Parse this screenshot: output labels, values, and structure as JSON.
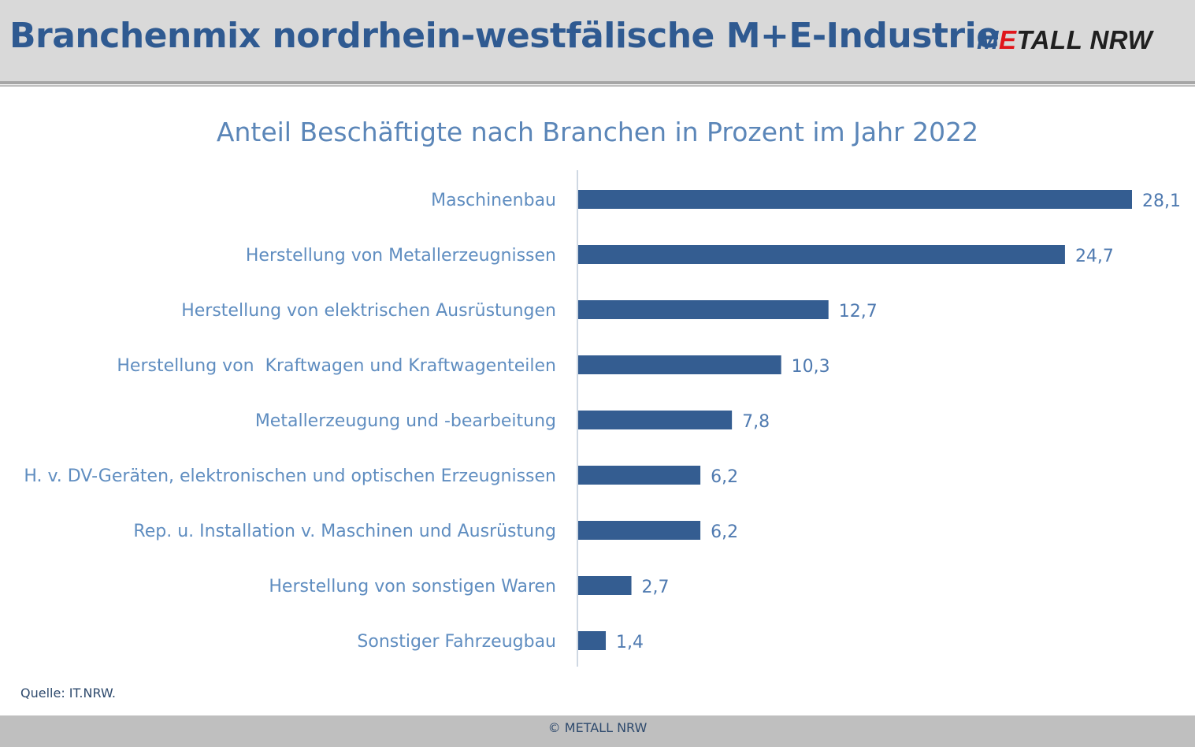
{
  "header": {
    "title": "Branchenmix nordrhein-westfälische M+E-Industrie",
    "logo": {
      "part1": "M",
      "part2": "E",
      "part3": "TALL NRW"
    }
  },
  "colors": {
    "brand_blue": "#2f5a91",
    "bar": "#345d91",
    "logo_red": "#e0161b"
  },
  "chart_data": {
    "type": "bar",
    "orientation": "horizontal",
    "title": "Anteil Beschäftigte nach Branchen in Prozent im Jahr 2022",
    "categories": [
      "Maschinenbau",
      "Herstellung von Metallerzeugnissen",
      "Herstellung von elektrischen Ausrüstungen",
      "Herstellung von  Kraftwagen und Kraftwagenteilen",
      "Metallerzeugung und -bearbeitung",
      "H. v. DV-Geräten, elektronischen und optischen Erzeugnissen",
      "Rep. u. Installation v. Maschinen und Ausrüstung",
      "Herstellung von sonstigen Waren",
      "Sonstiger Fahrzeugbau"
    ],
    "values": [
      28.1,
      24.7,
      12.7,
      10.3,
      7.8,
      6.2,
      6.2,
      2.7,
      1.4
    ],
    "value_labels": [
      "28,1",
      "24,7",
      "12,7",
      "10,3",
      "7,8",
      "6,2",
      "6,2",
      "2,7",
      "1,4"
    ],
    "xlim": [
      0,
      28.1
    ],
    "xlabel": "",
    "ylabel": "",
    "grid": false,
    "legend": "none"
  },
  "footer": {
    "source": "Quelle: IT.NRW.",
    "copyright": "© METALL NRW"
  }
}
